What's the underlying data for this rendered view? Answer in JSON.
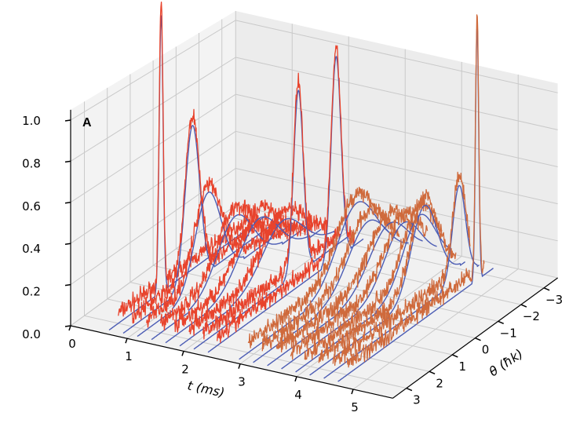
{
  "chart_data": {
    "type": "line3d",
    "panel_label": "A",
    "xlabel": "t (ms)",
    "ylabel": "θ (ħk)",
    "zlabel": "",
    "xlim": [
      0,
      5.7
    ],
    "ylim": [
      -3.6,
      3.6
    ],
    "zlim": [
      0,
      1.05
    ],
    "x_ticks": [
      "0",
      "1",
      "2",
      "3",
      "4",
      "5"
    ],
    "y_ticks": [
      "−3",
      "−2",
      "−1",
      "0",
      "1",
      "2",
      "3"
    ],
    "z_ticks": [
      "0.0",
      "0.2",
      "0.4",
      "0.6",
      "0.8",
      "1.0"
    ],
    "grid": true,
    "colors": {
      "measured_group_1": "#e8432c",
      "measured_group_2": "#cf6a3c",
      "fit": "#4b5cb4",
      "pane_left": "#f3f3f3",
      "pane_back": "#ececec",
      "pane_floor": "#f1f1f1",
      "grid": "#c9c9c9"
    },
    "series": [
      {
        "group": 1,
        "curves": [
          {
            "t": 0.6,
            "center": 1.13,
            "width": 0.12,
            "amplitude": 1.4
          },
          {
            "t": 0.85,
            "center": 0.38,
            "width": 0.45,
            "amplitude": 0.8
          },
          {
            "t": 1.1,
            "center": 0.31,
            "width": 0.8,
            "amplitude": 0.47
          },
          {
            "t": 1.35,
            "center": -0.27,
            "width": 1.1,
            "amplitude": 0.32
          },
          {
            "t": 1.6,
            "center": -0.68,
            "width": 1.2,
            "amplitude": 0.29
          },
          {
            "t": 1.85,
            "center": -1.1,
            "width": 1.25,
            "amplitude": 0.26
          },
          {
            "t": 2.1,
            "center": -1.16,
            "width": 0.3,
            "amplitude": 0.95
          },
          {
            "t": 2.35,
            "center": -2.19,
            "width": 0.3,
            "amplitude": 1.07
          }
        ]
      },
      {
        "group": 2,
        "curves": [
          {
            "t": 2.9,
            "center": -1.74,
            "width": 1.2,
            "amplitude": 0.37
          },
          {
            "t": 3.15,
            "center": -1.6,
            "width": 1.2,
            "amplitude": 0.3
          },
          {
            "t": 3.4,
            "center": -1.9,
            "width": 1.2,
            "amplitude": 0.28
          },
          {
            "t": 3.65,
            "center": -1.9,
            "width": 1.1,
            "amplitude": 0.3
          },
          {
            "t": 3.9,
            "center": -2.0,
            "width": 1.0,
            "amplitude": 0.35
          },
          {
            "t": 4.15,
            "center": -1.6,
            "width": 0.8,
            "amplitude": 0.45
          },
          {
            "t": 4.4,
            "center": -2.5,
            "width": 0.4,
            "amplitude": 0.5
          },
          {
            "t": 4.65,
            "center": -2.67,
            "width": 0.1,
            "amplitude": 1.35
          }
        ]
      }
    ]
  }
}
